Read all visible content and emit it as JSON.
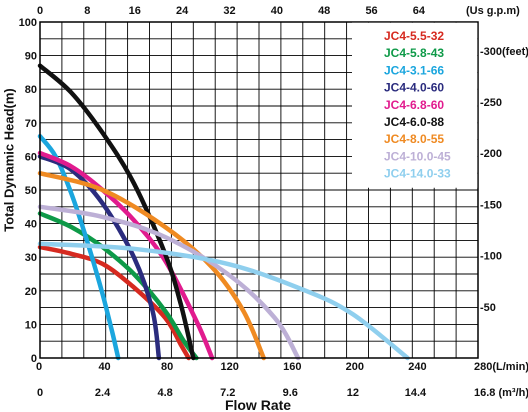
{
  "chart_data": {
    "type": "line",
    "ylabel": "Total Dynamic Head(m)",
    "xlabel": "Flow Rate",
    "y_ticks": [
      "0",
      "10",
      "20",
      "30",
      "40",
      "50",
      "60",
      "70",
      "80",
      "90",
      "100"
    ],
    "x_top_ticks": [
      "0",
      "8",
      "16",
      "24",
      "32",
      "40",
      "48",
      "56",
      "64"
    ],
    "x_top_unit": "(Us g.p.m)",
    "x_mid_ticks": [
      "0",
      "40",
      "80",
      "120",
      "160",
      "200",
      "240",
      "280(L/min)"
    ],
    "x_bottom_ticks": [
      "0",
      "2.4",
      "4.8",
      "7.2",
      "9.6",
      "12",
      "14.4",
      "16.8 (m³/h)"
    ],
    "y_right_ticks": [
      "-300(feet)",
      "-250",
      "-200",
      "-150",
      "-100",
      "-50"
    ],
    "ylim": [
      0,
      100
    ],
    "xlim_lpm": [
      0,
      280
    ],
    "grid": true,
    "legend_position": "top-right",
    "series": [
      {
        "name": "JC4-5.5-32",
        "color": "#d62a20",
        "x": [
          0,
          20,
          40,
          60,
          80,
          90,
          95
        ],
        "y": [
          33,
          31,
          28,
          21,
          12,
          4,
          0
        ]
      },
      {
        "name": "JC4-5.8-43",
        "color": "#0e9a48",
        "x": [
          0,
          20,
          40,
          60,
          80,
          92,
          100
        ],
        "y": [
          43,
          39,
          33,
          25,
          14,
          5,
          0
        ]
      },
      {
        "name": "JC4-3.1-66",
        "color": "#1ba6de",
        "x": [
          0,
          10,
          20,
          30,
          40,
          46,
          50
        ],
        "y": [
          66,
          60,
          49,
          35,
          19,
          8,
          0
        ]
      },
      {
        "name": "JC4-4.0-60",
        "color": "#2b2c7e",
        "x": [
          0,
          20,
          40,
          60,
          72,
          76
        ],
        "y": [
          60,
          56,
          46,
          30,
          14,
          0
        ]
      },
      {
        "name": "JC4-6.8-60",
        "color": "#e11b8e",
        "x": [
          0,
          20,
          40,
          60,
          80,
          100,
          110
        ],
        "y": [
          61,
          57,
          50,
          41,
          29,
          11,
          0
        ]
      },
      {
        "name": "JC4-6.0-88",
        "color": "#111111",
        "x": [
          0,
          20,
          40,
          60,
          80,
          90,
          98
        ],
        "y": [
          87,
          79,
          67,
          52,
          31,
          16,
          0
        ]
      },
      {
        "name": "JC4-8.0-55",
        "color": "#ef8a22",
        "x": [
          0,
          40,
          80,
          110,
          130,
          143
        ],
        "y": [
          55,
          50,
          39,
          27,
          14,
          0
        ]
      },
      {
        "name": "JC4-10.0-45",
        "color": "#bdb0d6",
        "x": [
          0,
          40,
          80,
          120,
          150,
          165
        ],
        "y": [
          45,
          42,
          36,
          25,
          12,
          0
        ]
      },
      {
        "name": "JC4-14.0-33",
        "color": "#8fcfee",
        "x": [
          0,
          60,
          120,
          170,
          200,
          235
        ],
        "y": [
          34,
          32.5,
          28,
          20,
          13,
          0
        ]
      }
    ]
  }
}
